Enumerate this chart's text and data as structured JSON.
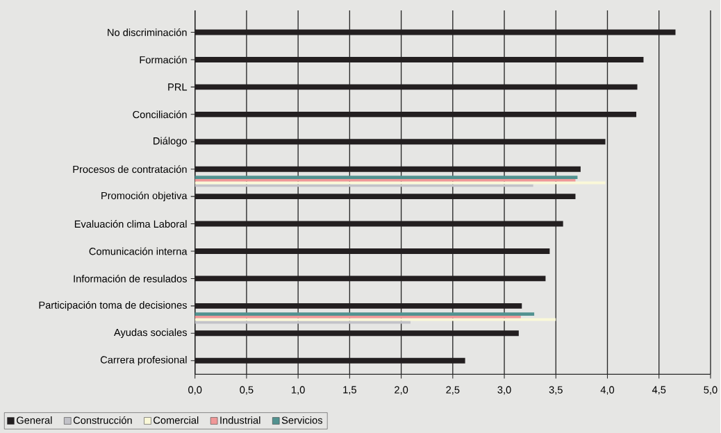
{
  "chart_data": {
    "type": "bar",
    "orientation": "horizontal",
    "categories": [
      "No discriminación",
      "Formación",
      "PRL",
      "Conciliación",
      "Diálogo",
      "Procesos de contratación",
      "Promoción objetiva",
      "Evaluación clima Laboral",
      "Comunicación interna",
      "Información de resulados",
      "Participación toma de decisiones",
      "Ayudas sociales",
      "Carrera profesional"
    ],
    "series": [
      {
        "name": "General",
        "color": "#231f20",
        "values": [
          4.66,
          4.35,
          4.29,
          4.28,
          3.98,
          3.74,
          3.69,
          3.57,
          3.44,
          3.4,
          3.17,
          3.14,
          2.62
        ]
      },
      {
        "name": "Construcción",
        "color": "#c2c2c8",
        "values": [
          null,
          null,
          null,
          null,
          null,
          3.28,
          null,
          null,
          null,
          null,
          2.09,
          null,
          null
        ]
      },
      {
        "name": "Comercial",
        "color": "#faf8d8",
        "values": [
          null,
          null,
          null,
          null,
          null,
          3.98,
          null,
          null,
          null,
          null,
          3.5,
          null,
          null
        ]
      },
      {
        "name": "Industrial",
        "color": "#f09898",
        "values": [
          null,
          null,
          null,
          null,
          null,
          3.69,
          null,
          null,
          null,
          null,
          3.16,
          null,
          null
        ]
      },
      {
        "name": "Servicios",
        "color": "#529290",
        "values": [
          null,
          null,
          null,
          null,
          null,
          3.71,
          null,
          null,
          null,
          null,
          3.29,
          null,
          null
        ]
      }
    ],
    "xlim": [
      0,
      5
    ],
    "xticks": [
      {
        "value": 0,
        "label": "0,0"
      },
      {
        "value": 0.5,
        "label": "0,5"
      },
      {
        "value": 1,
        "label": "1,0"
      },
      {
        "value": 1.5,
        "label": "1,5"
      },
      {
        "value": 2,
        "label": "2,0"
      },
      {
        "value": 2.5,
        "label": "2,5"
      },
      {
        "value": 3,
        "label": "3,0"
      },
      {
        "value": 3.5,
        "label": "3,5"
      },
      {
        "value": 4,
        "label": "4,0"
      },
      {
        "value": 4.5,
        "label": "4,5"
      },
      {
        "value": 5,
        "label": "5,0"
      }
    ],
    "grid": "x",
    "legend": "bottom left"
  }
}
